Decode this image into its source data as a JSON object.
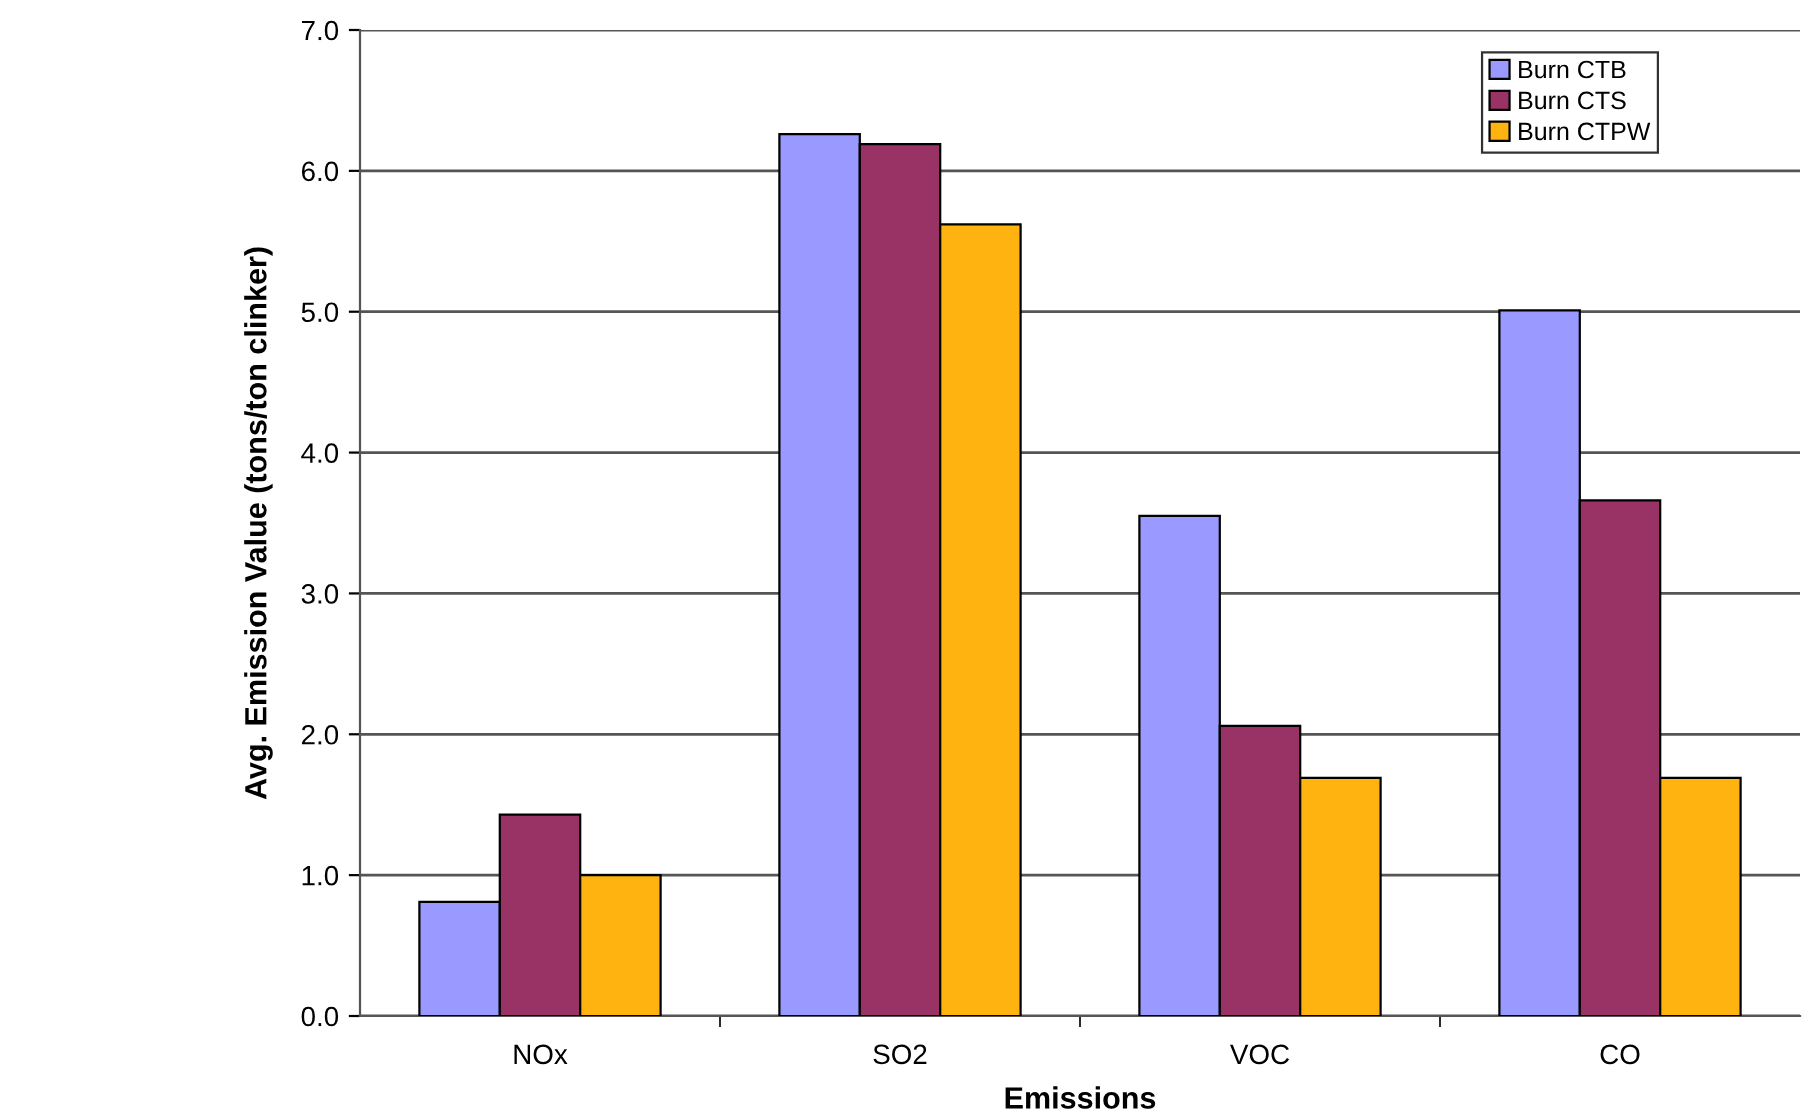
{
  "chart_data": {
    "type": "bar",
    "xlabel": "Emissions",
    "ylabel": "Avg. Emission Value (tons/ton clinker)",
    "categories": [
      "NOx",
      "SO2",
      "VOC",
      "CO"
    ],
    "series": [
      {
        "name": "Burn CTB",
        "color": "#9999ff",
        "values": [
          0.81,
          6.26,
          3.55,
          5.01
        ]
      },
      {
        "name": "Burn CTS",
        "color": "#993366",
        "values": [
          1.43,
          6.19,
          2.06,
          3.66
        ]
      },
      {
        "name": "Burn CTPW",
        "color": "#ffb310",
        "values": [
          1.0,
          5.62,
          1.69,
          1.69
        ]
      }
    ],
    "ylim": [
      0,
      7.0
    ],
    "yticks": [
      {
        "value": 0,
        "label": "0.0"
      },
      {
        "value": 1,
        "label": "1.0"
      },
      {
        "value": 2,
        "label": "2.0"
      },
      {
        "value": 3,
        "label": "3.0"
      },
      {
        "value": 4,
        "label": "4.0"
      },
      {
        "value": 5,
        "label": "5.0"
      },
      {
        "value": 6,
        "label": "6.0"
      },
      {
        "value": 7,
        "label": "7.0"
      }
    ],
    "grid": "y",
    "legend": "top right"
  }
}
